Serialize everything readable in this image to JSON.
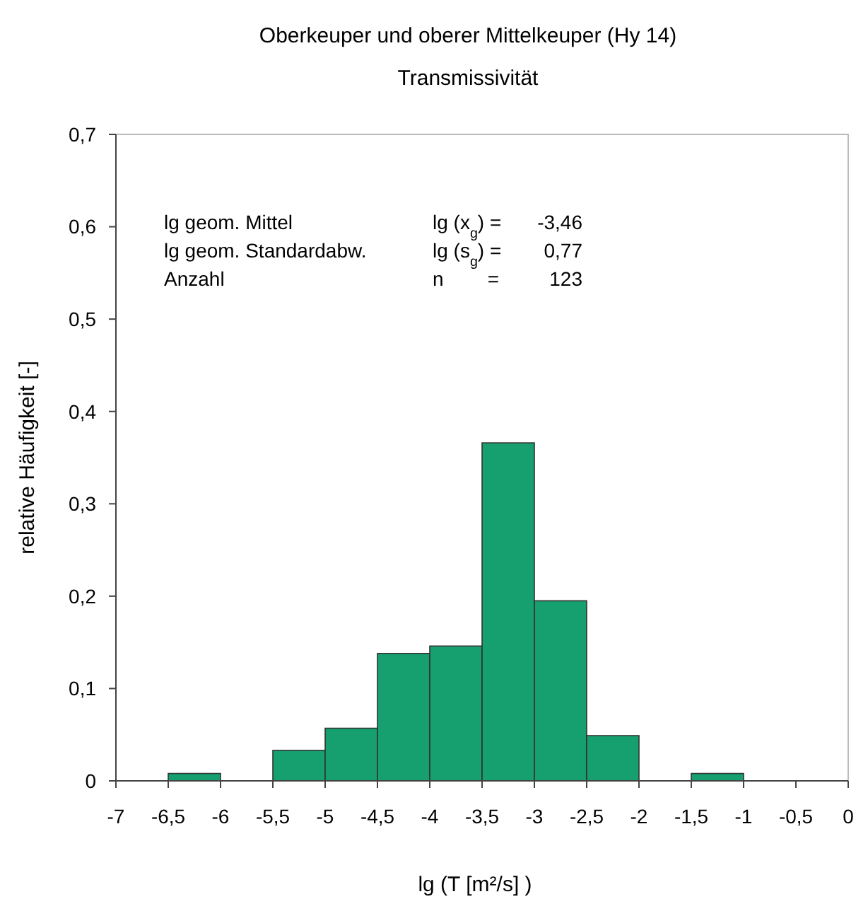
{
  "chart_data": {
    "type": "histogram",
    "title": "Oberkeuper und oberer Mittelkeuper (Hy 14)",
    "subtitle": "Transmissivität",
    "xlabel": "lg (T [m²/s] )",
    "ylabel": "relative Häufigkeit [-]",
    "bins": [
      -6.5,
      -6,
      -5.5,
      -5,
      -4.5,
      -4,
      -3.5,
      -3,
      -2.5,
      -2,
      -1.5,
      -1
    ],
    "values": [
      0.008,
      0,
      0.033,
      0.057,
      0.138,
      0.146,
      0.366,
      0.195,
      0.049,
      0,
      0.008
    ],
    "color": "#17a06f",
    "xlim": [
      -7,
      0
    ],
    "xticks": [
      -7,
      {
        "value": -6.5,
        "label": "-6,5"
      },
      -6,
      {
        "value": -5.5,
        "label": "-5,5"
      },
      -5,
      {
        "value": -4.5,
        "label": "-4,5"
      },
      -4,
      {
        "value": -3.5,
        "label": "-3,5"
      },
      -3,
      {
        "value": -2.5,
        "label": "-2,5"
      },
      -2,
      {
        "value": -1.5,
        "label": "-1,5"
      },
      -1,
      {
        "value": -0.5,
        "label": "-0,5"
      },
      0
    ],
    "ylim": [
      0,
      0.7
    ],
    "yticks": [
      0,
      {
        "value": 0.1,
        "label": "0,1"
      },
      {
        "value": 0.2,
        "label": "0,2"
      },
      {
        "value": 0.3,
        "label": "0,3"
      },
      {
        "value": 0.4,
        "label": "0,4"
      },
      {
        "value": 0.5,
        "label": "0,5"
      },
      {
        "value": 0.6,
        "label": "0,6"
      },
      {
        "value": 0.7,
        "label": "0,7"
      }
    ],
    "annotations": [
      "lg geom. Mittel\tlg (x$_{g}$) =\t-3,46",
      "lg geom. Standardabw.\tlg (s$_{g}$) =\t0,77",
      "Anzahl\tn        =\t123"
    ],
    "grid": false
  }
}
